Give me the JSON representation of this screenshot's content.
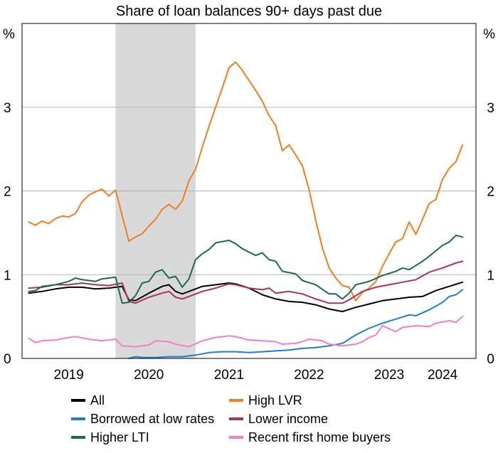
{
  "chart_data": {
    "type": "line",
    "title": "Share of loan balances 90+ days past due",
    "y_unit_left": "%",
    "y_unit_right": "%",
    "ylim": [
      0,
      4
    ],
    "yticks": [
      0,
      1,
      2,
      3
    ],
    "xlim": [
      "2018-12",
      "2024-08"
    ],
    "year_labels": [
      {
        "label": "2019",
        "at": "2019-07"
      },
      {
        "label": "2020",
        "at": "2020-07"
      },
      {
        "label": "2021",
        "at": "2021-07"
      },
      {
        "label": "2022",
        "at": "2022-07"
      },
      {
        "label": "2023",
        "at": "2023-07"
      },
      {
        "label": "2024",
        "at": "2024-03"
      }
    ],
    "shaded_period": [
      "2020-02",
      "2021-02"
    ],
    "grid": true,
    "legend_position": "bottom",
    "series": [
      {
        "name": "All",
        "color": "#000000",
        "points": [
          [
            "2019-01",
            0.78
          ],
          [
            "2019-03",
            0.8
          ],
          [
            "2019-05",
            0.83
          ],
          [
            "2019-07",
            0.85
          ],
          [
            "2019-09",
            0.85
          ],
          [
            "2019-11",
            0.83
          ],
          [
            "2020-01",
            0.84
          ],
          [
            "2020-03",
            0.86
          ],
          [
            "2020-04",
            0.7
          ],
          [
            "2020-05",
            0.69
          ],
          [
            "2020-07",
            0.78
          ],
          [
            "2020-09",
            0.86
          ],
          [
            "2020-10",
            0.88
          ],
          [
            "2020-11",
            0.8
          ],
          [
            "2020-12",
            0.77
          ],
          [
            "2021-01",
            0.8
          ],
          [
            "2021-03",
            0.86
          ],
          [
            "2021-05",
            0.88
          ],
          [
            "2021-07",
            0.9
          ],
          [
            "2021-08",
            0.89
          ],
          [
            "2021-10",
            0.84
          ],
          [
            "2021-12",
            0.76
          ],
          [
            "2022-02",
            0.71
          ],
          [
            "2022-04",
            0.68
          ],
          [
            "2022-06",
            0.67
          ],
          [
            "2022-08",
            0.64
          ],
          [
            "2022-10",
            0.59
          ],
          [
            "2022-12",
            0.56
          ],
          [
            "2023-02",
            0.61
          ],
          [
            "2023-04",
            0.65
          ],
          [
            "2023-06",
            0.69
          ],
          [
            "2023-08",
            0.71
          ],
          [
            "2023-10",
            0.73
          ],
          [
            "2023-12",
            0.74
          ],
          [
            "2024-02",
            0.81
          ],
          [
            "2024-04",
            0.86
          ],
          [
            "2024-06",
            0.91
          ]
        ]
      },
      {
        "name": "High LVR",
        "color": "#F47E1F",
        "points": [
          [
            "2019-01",
            1.63
          ],
          [
            "2019-02",
            1.59
          ],
          [
            "2019-03",
            1.64
          ],
          [
            "2019-04",
            1.61
          ],
          [
            "2019-05",
            1.67
          ],
          [
            "2019-06",
            1.7
          ],
          [
            "2019-07",
            1.69
          ],
          [
            "2019-08",
            1.73
          ],
          [
            "2019-09",
            1.87
          ],
          [
            "2019-10",
            1.95
          ],
          [
            "2019-11",
            1.99
          ],
          [
            "2019-12",
            2.02
          ],
          [
            "2020-01",
            1.94
          ],
          [
            "2020-02",
            2.01
          ],
          [
            "2020-04",
            1.4
          ],
          [
            "2020-05",
            1.45
          ],
          [
            "2020-06",
            1.49
          ],
          [
            "2020-07",
            1.58
          ],
          [
            "2020-08",
            1.66
          ],
          [
            "2020-09",
            1.78
          ],
          [
            "2020-10",
            1.84
          ],
          [
            "2020-11",
            1.78
          ],
          [
            "2020-12",
            1.88
          ],
          [
            "2021-01",
            2.12
          ],
          [
            "2021-02",
            2.26
          ],
          [
            "2021-03",
            2.52
          ],
          [
            "2021-04",
            2.77
          ],
          [
            "2021-05",
            3.0
          ],
          [
            "2021-06",
            3.23
          ],
          [
            "2021-07",
            3.47
          ],
          [
            "2021-08",
            3.54
          ],
          [
            "2021-09",
            3.44
          ],
          [
            "2021-10",
            3.32
          ],
          [
            "2021-11",
            3.2
          ],
          [
            "2021-12",
            3.07
          ],
          [
            "2022-01",
            2.9
          ],
          [
            "2022-02",
            2.78
          ],
          [
            "2022-03",
            2.48
          ],
          [
            "2022-04",
            2.55
          ],
          [
            "2022-05",
            2.43
          ],
          [
            "2022-06",
            2.3
          ],
          [
            "2022-07",
            2.02
          ],
          [
            "2022-08",
            1.65
          ],
          [
            "2022-09",
            1.32
          ],
          [
            "2022-10",
            1.08
          ],
          [
            "2022-11",
            0.96
          ],
          [
            "2022-12",
            0.87
          ],
          [
            "2023-01",
            0.85
          ],
          [
            "2023-02",
            0.69
          ],
          [
            "2023-03",
            0.79
          ],
          [
            "2023-04",
            0.84
          ],
          [
            "2023-05",
            0.92
          ],
          [
            "2023-06",
            1.1
          ],
          [
            "2023-07",
            1.25
          ],
          [
            "2023-08",
            1.39
          ],
          [
            "2023-09",
            1.43
          ],
          [
            "2023-10",
            1.63
          ],
          [
            "2023-11",
            1.48
          ],
          [
            "2023-12",
            1.66
          ],
          [
            "2024-01",
            1.85
          ],
          [
            "2024-02",
            1.9
          ],
          [
            "2024-03",
            2.14
          ],
          [
            "2024-04",
            2.27
          ],
          [
            "2024-05",
            2.35
          ],
          [
            "2024-06",
            2.55
          ]
        ]
      },
      {
        "name": "Borrowed at low rates",
        "color": "#1E7DD6",
        "points": [
          [
            "2020-04",
            0.0
          ],
          [
            "2020-05",
            0.02
          ],
          [
            "2020-06",
            0.01
          ],
          [
            "2020-08",
            0.01
          ],
          [
            "2020-10",
            0.02
          ],
          [
            "2020-12",
            0.02
          ],
          [
            "2021-02",
            0.04
          ],
          [
            "2021-04",
            0.07
          ],
          [
            "2021-06",
            0.08
          ],
          [
            "2021-08",
            0.08
          ],
          [
            "2021-10",
            0.07
          ],
          [
            "2021-12",
            0.08
          ],
          [
            "2022-02",
            0.09
          ],
          [
            "2022-04",
            0.1
          ],
          [
            "2022-06",
            0.12
          ],
          [
            "2022-08",
            0.13
          ],
          [
            "2022-10",
            0.15
          ],
          [
            "2022-12",
            0.18
          ],
          [
            "2023-02",
            0.28
          ],
          [
            "2023-04",
            0.36
          ],
          [
            "2023-06",
            0.42
          ],
          [
            "2023-08",
            0.47
          ],
          [
            "2023-10",
            0.52
          ],
          [
            "2023-11",
            0.51
          ],
          [
            "2024-01",
            0.58
          ],
          [
            "2024-03",
            0.67
          ],
          [
            "2024-04",
            0.74
          ],
          [
            "2024-05",
            0.76
          ],
          [
            "2024-06",
            0.82
          ]
        ]
      },
      {
        "name": "Lower income",
        "color": "#A8335E",
        "points": [
          [
            "2019-01",
            0.84
          ],
          [
            "2019-03",
            0.85
          ],
          [
            "2019-05",
            0.88
          ],
          [
            "2019-07",
            0.88
          ],
          [
            "2019-09",
            0.9
          ],
          [
            "2019-11",
            0.88
          ],
          [
            "2020-01",
            0.87
          ],
          [
            "2020-03",
            0.9
          ],
          [
            "2020-04",
            0.68
          ],
          [
            "2020-05",
            0.66
          ],
          [
            "2020-07",
            0.73
          ],
          [
            "2020-09",
            0.78
          ],
          [
            "2020-10",
            0.8
          ],
          [
            "2020-11",
            0.73
          ],
          [
            "2020-12",
            0.71
          ],
          [
            "2021-01",
            0.74
          ],
          [
            "2021-03",
            0.8
          ],
          [
            "2021-05",
            0.84
          ],
          [
            "2021-07",
            0.89
          ],
          [
            "2021-08",
            0.88
          ],
          [
            "2021-10",
            0.84
          ],
          [
            "2021-12",
            0.82
          ],
          [
            "2022-01",
            0.84
          ],
          [
            "2022-02",
            0.78
          ],
          [
            "2022-04",
            0.8
          ],
          [
            "2022-06",
            0.77
          ],
          [
            "2022-08",
            0.71
          ],
          [
            "2022-10",
            0.66
          ],
          [
            "2022-12",
            0.66
          ],
          [
            "2023-01",
            0.7
          ],
          [
            "2023-03",
            0.8
          ],
          [
            "2023-05",
            0.85
          ],
          [
            "2023-07",
            0.88
          ],
          [
            "2023-09",
            0.91
          ],
          [
            "2023-11",
            0.94
          ],
          [
            "2024-01",
            1.03
          ],
          [
            "2024-03",
            1.08
          ],
          [
            "2024-05",
            1.14
          ],
          [
            "2024-06",
            1.16
          ]
        ]
      },
      {
        "name": "Higher LTI",
        "color": "#1B6B4E",
        "points": [
          [
            "2019-01",
            0.8
          ],
          [
            "2019-02",
            0.81
          ],
          [
            "2019-03",
            0.86
          ],
          [
            "2019-05",
            0.88
          ],
          [
            "2019-07",
            0.92
          ],
          [
            "2019-08",
            0.96
          ],
          [
            "2019-09",
            0.94
          ],
          [
            "2019-11",
            0.92
          ],
          [
            "2019-12",
            0.95
          ],
          [
            "2020-01",
            0.96
          ],
          [
            "2020-02",
            0.97
          ],
          [
            "2020-03",
            0.66
          ],
          [
            "2020-04",
            0.67
          ],
          [
            "2020-05",
            0.75
          ],
          [
            "2020-06",
            0.9
          ],
          [
            "2020-07",
            0.92
          ],
          [
            "2020-08",
            1.03
          ],
          [
            "2020-09",
            1.06
          ],
          [
            "2020-10",
            0.96
          ],
          [
            "2020-11",
            0.98
          ],
          [
            "2020-12",
            0.85
          ],
          [
            "2021-01",
            0.95
          ],
          [
            "2021-02",
            1.18
          ],
          [
            "2021-03",
            1.25
          ],
          [
            "2021-04",
            1.3
          ],
          [
            "2021-05",
            1.38
          ],
          [
            "2021-07",
            1.41
          ],
          [
            "2021-08",
            1.37
          ],
          [
            "2021-09",
            1.31
          ],
          [
            "2021-10",
            1.27
          ],
          [
            "2021-11",
            1.23
          ],
          [
            "2021-12",
            1.26
          ],
          [
            "2022-01",
            1.18
          ],
          [
            "2022-02",
            1.16
          ],
          [
            "2022-03",
            1.04
          ],
          [
            "2022-05",
            1.01
          ],
          [
            "2022-06",
            0.93
          ],
          [
            "2022-08",
            0.88
          ],
          [
            "2022-10",
            0.77
          ],
          [
            "2022-11",
            0.77
          ],
          [
            "2022-12",
            0.71
          ],
          [
            "2023-01",
            0.78
          ],
          [
            "2023-02",
            0.88
          ],
          [
            "2023-04",
            0.92
          ],
          [
            "2023-06",
            0.99
          ],
          [
            "2023-08",
            1.04
          ],
          [
            "2023-09",
            1.08
          ],
          [
            "2023-10",
            1.06
          ],
          [
            "2023-12",
            1.16
          ],
          [
            "2024-01",
            1.22
          ],
          [
            "2024-03",
            1.35
          ],
          [
            "2024-04",
            1.39
          ],
          [
            "2024-05",
            1.47
          ],
          [
            "2024-06",
            1.45
          ]
        ]
      },
      {
        "name": "Recent first home buyers",
        "color": "#F47EC3",
        "points": [
          [
            "2019-01",
            0.24
          ],
          [
            "2019-02",
            0.19
          ],
          [
            "2019-03",
            0.21
          ],
          [
            "2019-05",
            0.22
          ],
          [
            "2019-07",
            0.25
          ],
          [
            "2019-08",
            0.26
          ],
          [
            "2019-10",
            0.23
          ],
          [
            "2019-12",
            0.21
          ],
          [
            "2020-02",
            0.23
          ],
          [
            "2020-03",
            0.15
          ],
          [
            "2020-05",
            0.14
          ],
          [
            "2020-07",
            0.16
          ],
          [
            "2020-08",
            0.21
          ],
          [
            "2020-10",
            0.2
          ],
          [
            "2020-11",
            0.17
          ],
          [
            "2021-01",
            0.14
          ],
          [
            "2021-03",
            0.21
          ],
          [
            "2021-05",
            0.25
          ],
          [
            "2021-07",
            0.27
          ],
          [
            "2021-08",
            0.26
          ],
          [
            "2021-10",
            0.22
          ],
          [
            "2021-12",
            0.21
          ],
          [
            "2022-02",
            0.2
          ],
          [
            "2022-03",
            0.17
          ],
          [
            "2022-05",
            0.18
          ],
          [
            "2022-06",
            0.2
          ],
          [
            "2022-07",
            0.23
          ],
          [
            "2022-09",
            0.21
          ],
          [
            "2022-10",
            0.17
          ],
          [
            "2022-12",
            0.15
          ],
          [
            "2023-02",
            0.17
          ],
          [
            "2023-03",
            0.2
          ],
          [
            "2023-04",
            0.25
          ],
          [
            "2023-05",
            0.28
          ],
          [
            "2023-06",
            0.39
          ],
          [
            "2023-08",
            0.32
          ],
          [
            "2023-09",
            0.37
          ],
          [
            "2023-11",
            0.39
          ],
          [
            "2024-01",
            0.38
          ],
          [
            "2024-02",
            0.42
          ],
          [
            "2024-04",
            0.45
          ],
          [
            "2024-05",
            0.43
          ],
          [
            "2024-06",
            0.5
          ]
        ]
      }
    ]
  }
}
